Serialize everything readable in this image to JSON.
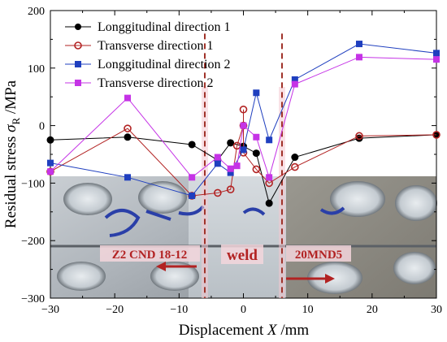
{
  "chart_data": {
    "type": "line",
    "xlabel": "Displacement  X /mm",
    "ylabel": "Residual stress  σR /MPa",
    "ylabel_parts": {
      "main": "Residual stress  ",
      "symbol": "σ",
      "subscript": "R",
      "unit": " /MPa"
    },
    "xlabel_parts": {
      "main": "Displacement  ",
      "symbol": "X",
      "unit": " /mm"
    },
    "xlim": [
      -30,
      30
    ],
    "ylim": [
      -300,
      200
    ],
    "xticks": [
      "-30",
      "-20",
      "-10",
      "0",
      "10",
      "20",
      "30"
    ],
    "yticks": [
      "-300",
      "-200",
      "-100",
      "0",
      "100",
      "200"
    ],
    "xtick_values": [
      -30,
      -20,
      -10,
      0,
      10,
      20,
      30
    ],
    "ytick_values": [
      -300,
      -200,
      -100,
      0,
      100,
      200
    ],
    "legend_position": "top-right",
    "series": [
      {
        "name": "Longgitudinal direction 1",
        "color": "#000000",
        "marker": "filled-circle",
        "x": [
          -30,
          -18,
          -8,
          -4,
          -2,
          0,
          2,
          4,
          8,
          18,
          30
        ],
        "y": [
          -25,
          -20,
          -33,
          -60,
          -30,
          -36,
          -48,
          -135,
          -55,
          -22,
          -16
        ]
      },
      {
        "name": "Transverse direction 1",
        "color": "#b22222",
        "marker": "open-circle",
        "x": [
          -30,
          -18,
          -8,
          -4,
          -2,
          -1,
          0,
          0,
          0,
          2,
          4,
          8,
          18,
          30
        ],
        "y": [
          -80,
          -5,
          -122,
          -117,
          -111,
          -35,
          0,
          28,
          -47,
          -76,
          -100,
          -72,
          -18,
          -16
        ]
      },
      {
        "name": "Longgitudinal direction 2",
        "color": "#1f3fbf",
        "marker": "filled-square",
        "x": [
          -30,
          -18,
          -8,
          -4,
          -2,
          0,
          2,
          4,
          8,
          18,
          30
        ],
        "y": [
          -65,
          -90,
          -122,
          -66,
          -82,
          -42,
          57,
          -25,
          80,
          142,
          126
        ]
      },
      {
        "name": "Transverse direction 2",
        "color": "#c533e6",
        "marker": "filled-square",
        "x": [
          -30,
          -18,
          -8,
          -4,
          -2,
          -1,
          0,
          2,
          4,
          8,
          18,
          30
        ],
        "y": [
          -80,
          48,
          -90,
          -55,
          -75,
          -70,
          0,
          -20,
          -90,
          72,
          119,
          115
        ]
      }
    ],
    "region_labels": {
      "left": "Z2 CND 18-12",
      "middle": "weld",
      "right": "20MND5"
    },
    "weld_boundaries": [
      -6,
      6
    ]
  }
}
